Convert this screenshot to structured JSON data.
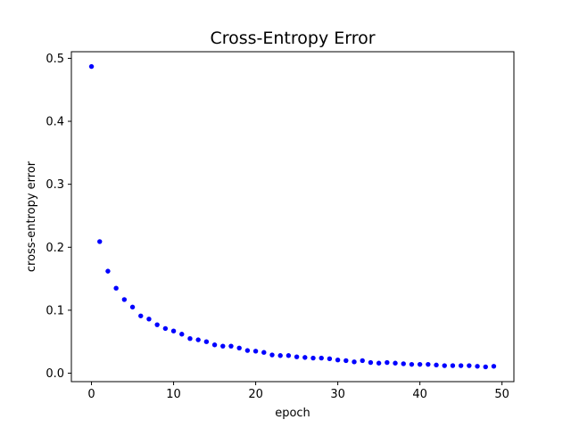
{
  "chart_data": {
    "type": "scatter",
    "title": "Cross-Entropy Error",
    "xlabel": "epoch",
    "ylabel": "cross-entropy error",
    "xlim": [
      -2.45,
      51.45
    ],
    "ylim": [
      -0.0134,
      0.5105
    ],
    "xticks": [
      0,
      10,
      20,
      30,
      40,
      50
    ],
    "yticks": [
      0.0,
      0.1,
      0.2,
      0.3,
      0.4,
      0.5
    ],
    "xtick_labels": [
      "0",
      "10",
      "20",
      "30",
      "40",
      "50"
    ],
    "ytick_labels": [
      "0.0",
      "0.1",
      "0.2",
      "0.3",
      "0.4",
      "0.5"
    ],
    "grid": false,
    "marker_color": "#0000ff",
    "x": [
      0,
      1,
      2,
      3,
      4,
      5,
      6,
      7,
      8,
      9,
      10,
      11,
      12,
      13,
      14,
      15,
      16,
      17,
      18,
      19,
      20,
      21,
      22,
      23,
      24,
      25,
      26,
      27,
      28,
      29,
      30,
      31,
      32,
      33,
      34,
      35,
      36,
      37,
      38,
      39,
      40,
      41,
      42,
      43,
      44,
      45,
      46,
      47,
      48,
      49
    ],
    "y": [
      0.487,
      0.209,
      0.162,
      0.135,
      0.117,
      0.105,
      0.091,
      0.086,
      0.077,
      0.071,
      0.067,
      0.062,
      0.055,
      0.053,
      0.05,
      0.045,
      0.043,
      0.043,
      0.04,
      0.036,
      0.035,
      0.033,
      0.029,
      0.028,
      0.028,
      0.026,
      0.025,
      0.024,
      0.024,
      0.023,
      0.021,
      0.02,
      0.018,
      0.02,
      0.017,
      0.016,
      0.017,
      0.016,
      0.015,
      0.014,
      0.014,
      0.014,
      0.013,
      0.012,
      0.012,
      0.012,
      0.012,
      0.011,
      0.01,
      0.011
    ]
  }
}
